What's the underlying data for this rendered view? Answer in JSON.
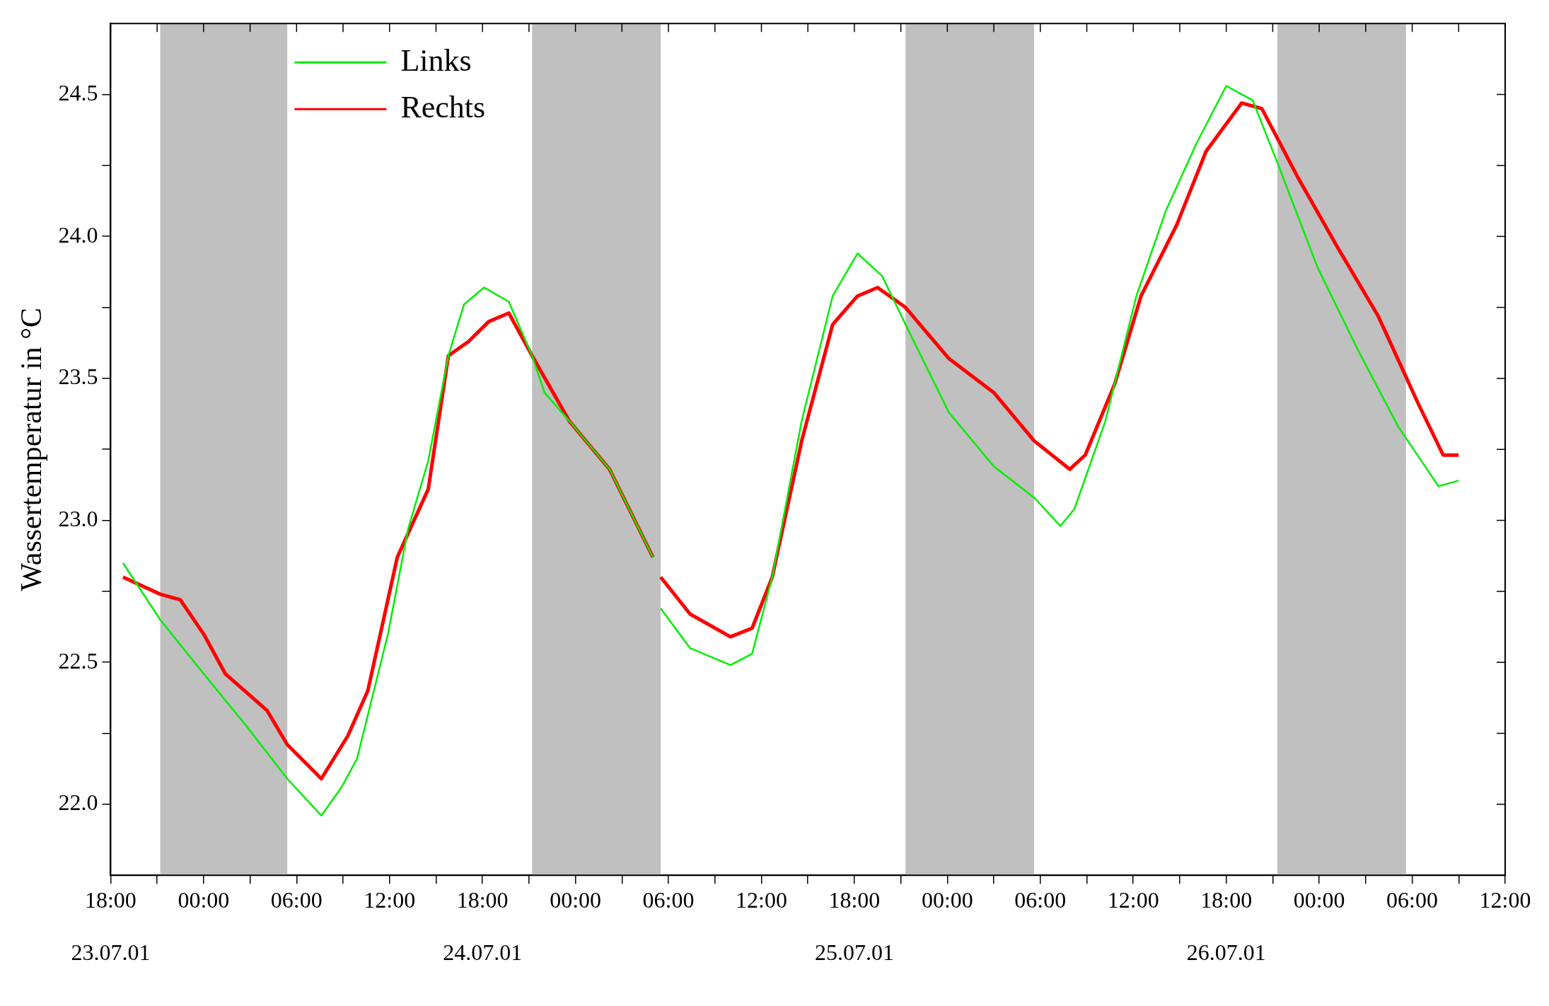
{
  "chart_data": {
    "type": "line",
    "ylabel": "Wassertemperatur in °C",
    "xlim": [
      "--07-23T18:00",
      "--07-27T12:00"
    ],
    "xticks": [
      {
        "value": "--07-23T18:00",
        "label": "18:00"
      },
      {
        "value": "--07-23T21:00",
        "label": null
      },
      {
        "value": "--07-24T00:00",
        "label": "00:00"
      },
      {
        "value": "--07-24T03:00",
        "label": null
      },
      {
        "value": "--07-24T06:00",
        "label": "06:00"
      },
      {
        "value": "--07-24T09:00",
        "label": null
      },
      {
        "value": "--07-24T12:00",
        "label": "12:00"
      },
      {
        "value": "--07-24T15:00",
        "label": null
      },
      {
        "value": "--07-24T18:00",
        "label": "18:00"
      },
      {
        "value": "--07-24T21:00",
        "label": null
      },
      {
        "value": "--07-25T00:00",
        "label": "00:00"
      },
      {
        "value": "--07-25T03:00",
        "label": null
      },
      {
        "value": "--07-25T06:00",
        "label": "06:00"
      },
      {
        "value": "--07-25T09:00",
        "label": null
      },
      {
        "value": "--07-25T12:00",
        "label": "12:00"
      },
      {
        "value": "--07-25T15:00",
        "label": null
      },
      {
        "value": "--07-25T18:00",
        "label": "18:00"
      },
      {
        "value": "--07-25T21:00",
        "label": null
      },
      {
        "value": "--07-26T00:00",
        "label": "00:00"
      },
      {
        "value": "--07-26T03:00",
        "label": null
      },
      {
        "value": "--07-26T06:00",
        "label": "06:00"
      },
      {
        "value": "--07-26T09:00",
        "label": null
      },
      {
        "value": "--07-26T12:00",
        "label": "12:00"
      },
      {
        "value": "--07-26T15:00",
        "label": null
      },
      {
        "value": "--07-26T18:00",
        "label": "18:00"
      },
      {
        "value": "--07-26T21:00",
        "label": null
      },
      {
        "value": "--07-27T00:00",
        "label": "00:00"
      },
      {
        "value": "--07-27T03:00",
        "label": null
      },
      {
        "value": "--07-27T06:00",
        "label": "06:00"
      },
      {
        "value": "--07-27T09:00",
        "label": null
      },
      {
        "value": "--07-27T12:00",
        "label": "12:00"
      }
    ],
    "x2lim": [
      "--07-23T18:00",
      "--07-27T12:00"
    ],
    "x2ticks": [
      {
        "value": "--07-23T18:00",
        "label": "23.07.01"
      },
      {
        "value": "--07-24T18:00",
        "label": "24.07.01"
      },
      {
        "value": "--07-25T18:00",
        "label": "25.07.01"
      },
      {
        "value": "--07-26T18:00",
        "label": "26.07.01"
      }
    ],
    "ylim": [
      21.75,
      24.75
    ],
    "yticks": [
      {
        "value": 22,
        "label": "22.0"
      },
      {
        "value": 22.25,
        "label": null
      },
      {
        "value": 22.5,
        "label": "22.5"
      },
      {
        "value": 22.75,
        "label": null
      },
      {
        "value": 23,
        "label": "23.0"
      },
      {
        "value": 23.25,
        "label": null
      },
      {
        "value": 23.5,
        "label": "23.5"
      },
      {
        "value": 23.75,
        "label": null
      },
      {
        "value": 24,
        "label": "24.0"
      },
      {
        "value": 24.25,
        "label": null
      },
      {
        "value": 24.5,
        "label": "24.5"
      }
    ],
    "grid": false,
    "legend": "top left",
    "bands": [
      {
        "axis": "x",
        "from": "--07-23T21:12",
        "to": "--07-24T05:24",
        "color": "#c0c0c0"
      },
      {
        "axis": "x",
        "from": "--07-24T21:12",
        "to": "--07-25T05:30",
        "color": "#c0c0c0"
      },
      {
        "axis": "x",
        "from": "--07-25T21:18",
        "to": "--07-26T05:36",
        "color": "#c0c0c0"
      },
      {
        "axis": "x",
        "from": "--07-26T21:18",
        "to": "--07-27T05:36",
        "color": "#c0c0c0"
      }
    ],
    "series": [
      {
        "name": "Links",
        "color": "#00ee00",
        "x": [
          "--07-23T18:48",
          "--07-23T21:12",
          "--07-24T00:00",
          "--07-24T02:42",
          "--07-24T05:24",
          "--07-24T07:36",
          "--07-24T08:54",
          "--07-24T09:54",
          "--07-24T11:54",
          "--07-24T13:12",
          "--07-24T14:30",
          "--07-24T15:48",
          "--07-24T16:48",
          "--07-24T18:06",
          "--07-24T19:42",
          "--07-24T21:12",
          "--07-24T22:00",
          "--07-24T23:36",
          "--07-25T02:12",
          "--07-25T05:00",
          "--07-25T05:18",
          "--07-25T05:30",
          "--07-25T07:24",
          "--07-25T10:00",
          "--07-25T11:24",
          "--07-25T12:42",
          "--07-25T14:36",
          "--07-25T16:36",
          "--07-25T18:12",
          "--07-25T19:48",
          "--07-25T21:18",
          "--07-26T00:06",
          "--07-26T03:00",
          "--07-26T05:36",
          "--07-26T07:18",
          "--07-26T08:12",
          "--07-26T10:12",
          "--07-26T12:12",
          "--07-26T14:06",
          "--07-26T16:06",
          "--07-26T18:00",
          "--07-26T19:42",
          "--07-26T21:18",
          "--07-26T23:54",
          "--07-27T02:30",
          "--07-27T05:06",
          "--07-27T07:42",
          "--07-27T09:00"
        ],
        "values": [
          22.85,
          22.65,
          22.46,
          22.28,
          22.09,
          21.96,
          22.06,
          22.16,
          22.6,
          22.97,
          23.21,
          23.58,
          23.76,
          23.82,
          23.77,
          23.58,
          23.45,
          23.35,
          23.18,
          22.87,
          null,
          22.69,
          22.55,
          22.49,
          22.53,
          22.8,
          23.35,
          23.79,
          23.94,
          23.86,
          23.69,
          23.38,
          23.19,
          23.08,
          22.98,
          23.04,
          23.35,
          23.79,
          24.09,
          24.33,
          24.53,
          24.48,
          24.26,
          23.89,
          23.6,
          23.33,
          23.12,
          23.14
        ]
      },
      {
        "name": "Rechts",
        "color": "#ff0000",
        "x": [
          "--07-23T18:48",
          "--07-23T21:12",
          "--07-23T22:30",
          "--07-24T00:00",
          "--07-24T01:24",
          "--07-24T04:06",
          "--07-24T05:24",
          "--07-24T07:36",
          "--07-24T09:18",
          "--07-24T10:36",
          "--07-24T12:30",
          "--07-24T14:30",
          "--07-24T15:48",
          "--07-24T17:06",
          "--07-24T18:24",
          "--07-24T19:42",
          "--07-24T21:12",
          "--07-24T23:36",
          "--07-25T02:12",
          "--07-25T05:00",
          "--07-25T05:18",
          "--07-25T05:30",
          "--07-25T07:24",
          "--07-25T10:00",
          "--07-25T11:24",
          "--07-25T12:42",
          "--07-25T14:36",
          "--07-25T16:36",
          "--07-25T18:12",
          "--07-25T19:30",
          "--07-25T21:18",
          "--07-26T00:06",
          "--07-26T03:00",
          "--07-26T05:36",
          "--07-26T07:54",
          "--07-26T08:54",
          "--07-26T10:48",
          "--07-26T12:30",
          "--07-26T14:48",
          "--07-26T16:42",
          "--07-26T19:00",
          "--07-26T20:18",
          "--07-26T22:36",
          "--07-27T01:12",
          "--07-27T03:48",
          "--07-27T06:24",
          "--07-27T08:00",
          "--07-27T09:00"
        ],
        "values": [
          22.8,
          22.74,
          22.72,
          22.6,
          22.46,
          22.33,
          22.21,
          22.09,
          22.24,
          22.4,
          22.87,
          23.11,
          23.58,
          23.63,
          23.7,
          23.73,
          23.58,
          23.35,
          23.18,
          22.87,
          null,
          22.8,
          22.67,
          22.59,
          22.62,
          22.8,
          23.28,
          23.69,
          23.79,
          23.82,
          23.75,
          23.57,
          23.45,
          23.28,
          23.18,
          23.23,
          23.48,
          23.79,
          24.04,
          24.3,
          24.47,
          24.45,
          24.21,
          23.96,
          23.72,
          23.41,
          23.23,
          23.23
        ]
      }
    ]
  }
}
